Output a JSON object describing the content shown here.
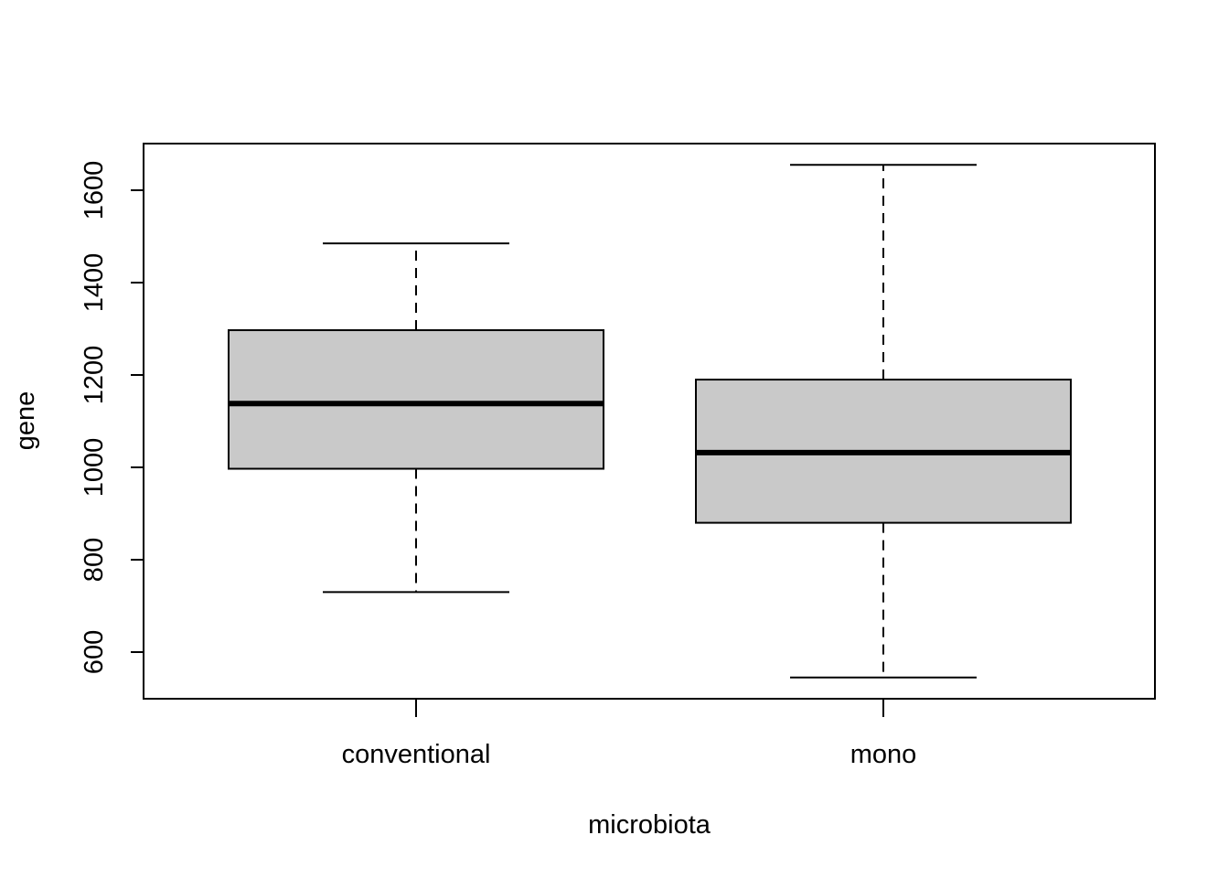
{
  "chart_data": {
    "type": "boxplot",
    "xlabel": "microbiota",
    "ylabel": "gene",
    "ylim": [
      500,
      1700
    ],
    "yticks": [
      600,
      800,
      1000,
      1200,
      1400,
      1600
    ],
    "categories": [
      "conventional",
      "mono"
    ],
    "boxes": [
      {
        "category": "conventional",
        "whisker_low": 730,
        "q1": 997,
        "median": 1138,
        "q3": 1297,
        "whisker_high": 1485
      },
      {
        "category": "mono",
        "whisker_low": 545,
        "q1": 880,
        "median": 1032,
        "q3": 1190,
        "whisker_high": 1655
      }
    ],
    "box_fill": "#c9c9c9",
    "line_color": "#000000",
    "grid": false
  }
}
